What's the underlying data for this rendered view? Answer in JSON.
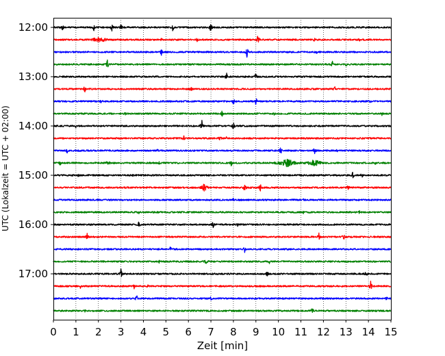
{
  "chart_data": {
    "type": "line",
    "chart_kind": "helicorder",
    "xlabel": "Zeit  [min]",
    "ylabel": "UTC (Lokalzeit = UTC + 02:00)",
    "xlim": [
      0,
      15
    ],
    "xticks": [
      0,
      1,
      2,
      3,
      4,
      5,
      6,
      7,
      8,
      9,
      10,
      11,
      12,
      13,
      14,
      15
    ],
    "xtick_labels": [
      "0",
      "1",
      "2",
      "3",
      "4",
      "5",
      "6",
      "7",
      "8",
      "9",
      "10",
      "11",
      "12",
      "13",
      "14",
      "15"
    ],
    "ytick_labels": [
      "12:00",
      "13:00",
      "14:00",
      "15:00",
      "16:00",
      "17:00"
    ],
    "vertical_grid": "dotted, every minute",
    "line_colors": [
      "#000000",
      "#ff0000",
      "#0000ff",
      "#008000"
    ],
    "traces": [
      {
        "start": "12:00",
        "color": "#000000",
        "events": [
          [
            0.4,
            0.5,
            6
          ],
          [
            1.8,
            0.8,
            4
          ],
          [
            2.6,
            0.9,
            4
          ],
          [
            3.0,
            0.8,
            4
          ],
          [
            5.3,
            0.8,
            4
          ],
          [
            7.0,
            1.4,
            3
          ]
        ]
      },
      {
        "start": "12:15",
        "color": "#ff0000",
        "events": [
          [
            2.0,
            0.6,
            22
          ],
          [
            2.2,
            0.6,
            14
          ],
          [
            4.8,
            0.4,
            4
          ],
          [
            6.4,
            0.5,
            4
          ],
          [
            9.1,
            1.1,
            4
          ],
          [
            11.6,
            0.4,
            4
          ],
          [
            13.6,
            0.4,
            4
          ]
        ]
      },
      {
        "start": "12:30",
        "color": "#0000ff",
        "events": [
          [
            4.8,
            0.7,
            4
          ],
          [
            8.6,
            1.1,
            4
          ],
          [
            11.7,
            0.4,
            4
          ]
        ]
      },
      {
        "start": "12:45",
        "color": "#008000",
        "events": [
          [
            2.4,
            0.9,
            4
          ],
          [
            12.4,
            0.7,
            4
          ],
          [
            13.0,
            0.5,
            4
          ]
        ]
      },
      {
        "start": "13:00",
        "color": "#000000",
        "events": [
          [
            7.7,
            0.9,
            4
          ],
          [
            9.0,
            0.8,
            4
          ]
        ]
      },
      {
        "start": "13:15",
        "color": "#ff0000",
        "events": [
          [
            1.4,
            0.8,
            4
          ],
          [
            6.1,
            0.5,
            6
          ],
          [
            12.5,
            0.7,
            4
          ]
        ]
      },
      {
        "start": "13:30",
        "color": "#0000ff",
        "events": [
          [
            2.1,
            0.4,
            4
          ],
          [
            8.0,
            0.7,
            4
          ],
          [
            9.0,
            0.8,
            4
          ],
          [
            14.1,
            0.4,
            4
          ]
        ]
      },
      {
        "start": "13:45",
        "color": "#008000",
        "events": [
          [
            3.2,
            0.3,
            6
          ],
          [
            7.5,
            0.7,
            4
          ],
          [
            9.8,
            0.4,
            4
          ],
          [
            14.6,
            0.4,
            4
          ]
        ]
      },
      {
        "start": "14:00",
        "color": "#000000",
        "events": [
          [
            1.0,
            0.5,
            4
          ],
          [
            6.6,
            1.2,
            4
          ],
          [
            8.0,
            0.9,
            4
          ]
        ]
      },
      {
        "start": "14:15",
        "color": "#ff0000",
        "events": [
          [
            5.8,
            0.6,
            4
          ],
          [
            7.4,
            0.7,
            4
          ],
          [
            7.7,
            0.4,
            4
          ]
        ]
      },
      {
        "start": "14:30",
        "color": "#0000ff",
        "events": [
          [
            0.6,
            0.6,
            4
          ],
          [
            4.6,
            0.5,
            4
          ],
          [
            10.1,
            0.8,
            4
          ],
          [
            11.6,
            0.8,
            4
          ],
          [
            12.6,
            0.4,
            4
          ]
        ]
      },
      {
        "start": "14:45",
        "color": "#008000",
        "events": [
          [
            0.3,
            0.5,
            4
          ],
          [
            2.4,
            0.5,
            10
          ],
          [
            4.7,
            0.4,
            4
          ],
          [
            7.9,
            0.8,
            4
          ],
          [
            10.4,
            0.8,
            30
          ],
          [
            11.6,
            0.7,
            26
          ],
          [
            14.3,
            0.4,
            4
          ]
        ]
      },
      {
        "start": "15:00",
        "color": "#000000",
        "events": [
          [
            1.1,
            0.3,
            6
          ],
          [
            3.5,
            0.3,
            8
          ],
          [
            13.3,
            0.8,
            4
          ],
          [
            13.7,
            0.6,
            4
          ]
        ]
      },
      {
        "start": "15:15",
        "color": "#ff0000",
        "events": [
          [
            6.7,
            1.1,
            8
          ],
          [
            8.5,
            1.1,
            4
          ],
          [
            9.2,
            0.8,
            4
          ],
          [
            13.1,
            0.6,
            4
          ]
        ]
      },
      {
        "start": "15:30",
        "color": "#0000ff",
        "events": [
          [
            2.0,
            0.4,
            4
          ],
          [
            8.0,
            0.4,
            4
          ],
          [
            11.1,
            0.3,
            4
          ]
        ]
      },
      {
        "start": "15:45",
        "color": "#008000",
        "events": [
          [
            3.8,
            0.5,
            4
          ],
          [
            11.1,
            0.4,
            4
          ],
          [
            13.6,
            0.4,
            4
          ]
        ]
      },
      {
        "start": "16:00",
        "color": "#000000",
        "events": [
          [
            3.8,
            0.9,
            4
          ],
          [
            7.1,
            0.8,
            4
          ],
          [
            8.2,
            0.5,
            4
          ]
        ]
      },
      {
        "start": "16:15",
        "color": "#ff0000",
        "events": [
          [
            1.5,
            0.7,
            4
          ],
          [
            11.8,
            0.8,
            4
          ],
          [
            12.9,
            0.7,
            4
          ]
        ]
      },
      {
        "start": "16:30",
        "color": "#0000ff",
        "events": [
          [
            5.2,
            0.6,
            4
          ],
          [
            8.5,
            0.7,
            4
          ]
        ]
      },
      {
        "start": "16:45",
        "color": "#008000",
        "events": [
          [
            4.7,
            0.4,
            4
          ],
          [
            6.8,
            0.5,
            8
          ],
          [
            9.6,
            0.5,
            4
          ]
        ]
      },
      {
        "start": "17:00",
        "color": "#000000",
        "events": [
          [
            3.0,
            1.0,
            4
          ],
          [
            9.5,
            0.6,
            4
          ],
          [
            13.9,
            0.4,
            8
          ]
        ]
      },
      {
        "start": "17:15",
        "color": "#ff0000",
        "events": [
          [
            1.2,
            0.5,
            4
          ],
          [
            3.6,
            0.7,
            4
          ],
          [
            4.2,
            0.4,
            4
          ],
          [
            14.1,
            1.2,
            4
          ]
        ]
      },
      {
        "start": "17:30",
        "color": "#0000ff",
        "events": [
          [
            3.7,
            0.7,
            4
          ],
          [
            7.0,
            0.5,
            4
          ],
          [
            14.8,
            0.5,
            4
          ]
        ]
      },
      {
        "start": "17:45",
        "color": "#008000",
        "events": [
          [
            1.4,
            0.3,
            10
          ],
          [
            11.5,
            0.8,
            4
          ]
        ]
      }
    ]
  }
}
